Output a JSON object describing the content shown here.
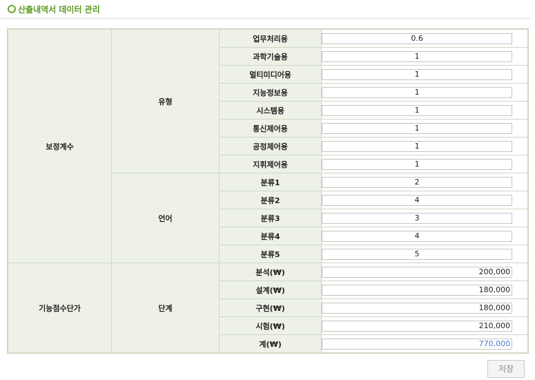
{
  "header": {
    "title": "산출내역서 데이터 관리"
  },
  "groups": {
    "correction": "보정계수",
    "type": "유형",
    "language": "언어",
    "unit_price": "기능점수단가",
    "stage": "단계"
  },
  "type_rows": [
    {
      "label": "업무처리용",
      "value": "0.6"
    },
    {
      "label": "과학기술용",
      "value": "1"
    },
    {
      "label": "멀티미디어용",
      "value": "1"
    },
    {
      "label": "지능정보용",
      "value": "1"
    },
    {
      "label": "시스템용",
      "value": "1"
    },
    {
      "label": "통신제어용",
      "value": "1"
    },
    {
      "label": "공정제어용",
      "value": "1"
    },
    {
      "label": "지휘제어용",
      "value": "1"
    }
  ],
  "language_rows": [
    {
      "label": "분류1",
      "value": "2"
    },
    {
      "label": "분류2",
      "value": "4"
    },
    {
      "label": "분류3",
      "value": "3"
    },
    {
      "label": "분류4",
      "value": "4"
    },
    {
      "label": "분류5",
      "value": "5"
    }
  ],
  "stage_rows": [
    {
      "label": "분석(₩)",
      "value": "200,000"
    },
    {
      "label": "설계(₩)",
      "value": "180,000"
    },
    {
      "label": "구현(₩)",
      "value": "180,000"
    },
    {
      "label": "시험(₩)",
      "value": "210,000"
    },
    {
      "label": "계(₩)",
      "value": "770,000"
    }
  ],
  "buttons": {
    "save": "저장"
  },
  "colors": {
    "accent": "#5a9a1e",
    "total_value": "#4f78c8",
    "label_bg": "#eef2e6"
  }
}
